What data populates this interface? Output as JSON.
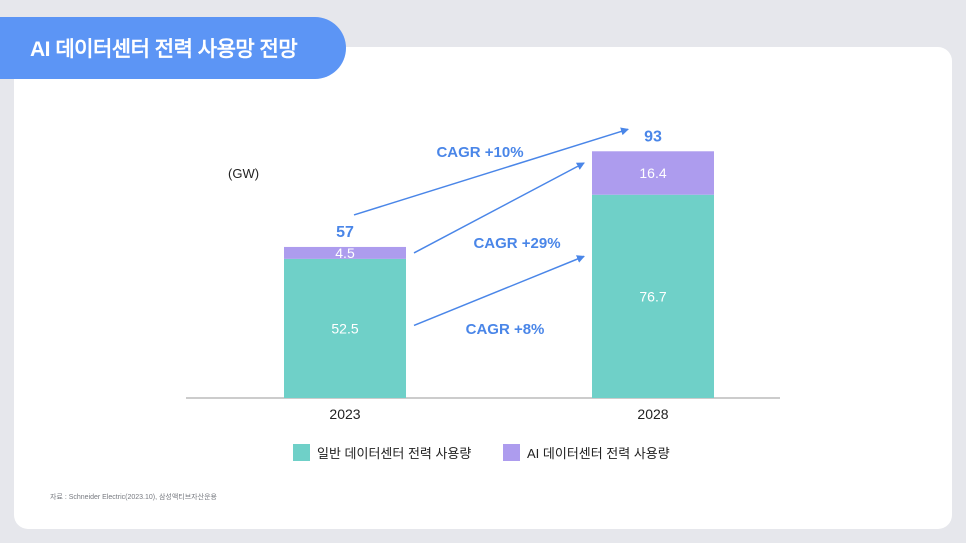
{
  "title": "AI 데이터센터 전력 사용망 전망",
  "source": "자료 : Schneider Electric(2023.10), 삼성액티브자산운용",
  "colors": {
    "title_bg": "#5c95f5",
    "general": "#6fd0c8",
    "ai": "#ad9cee",
    "accent": "#4a86e8"
  },
  "chart_data": {
    "type": "bar",
    "stacked": true,
    "unit": "(GW)",
    "categories": [
      "2023",
      "2028"
    ],
    "series": [
      {
        "name": "일반 데이터센터 전력 사용량",
        "values": [
          52.5,
          76.7
        ]
      },
      {
        "name": "AI 데이터센터 전력 사용량",
        "values": [
          4.5,
          16.4
        ]
      }
    ],
    "totals": [
      "57",
      "93"
    ],
    "segment_labels": [
      [
        "52.5",
        "4.5"
      ],
      [
        "76.7",
        "16.4"
      ]
    ],
    "annotations": [
      "CAGR +10%",
      "CAGR +29%",
      "CAGR +8%"
    ],
    "legend_position": "bottom-center",
    "grid": false
  }
}
